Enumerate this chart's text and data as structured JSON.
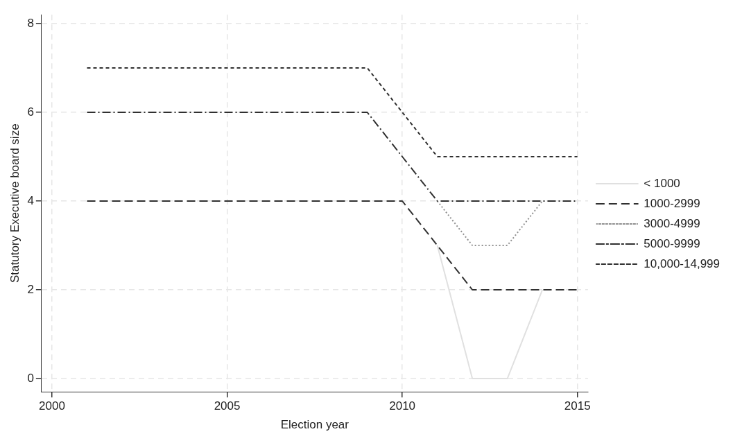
{
  "chart_data": {
    "type": "line",
    "xlabel": "Election year",
    "ylabel": "Statutory Executive board size",
    "x": [
      2001,
      2002,
      2003,
      2004,
      2005,
      2006,
      2007,
      2008,
      2009,
      2010,
      2011,
      2012,
      2013,
      2014,
      2015
    ],
    "series": [
      {
        "name": "< 1000",
        "color": "#e0e0e0",
        "line_style": "solid",
        "values": [
          null,
          null,
          null,
          null,
          null,
          null,
          null,
          null,
          null,
          null,
          3,
          0,
          0,
          2,
          null
        ]
      },
      {
        "name": "1000-2999",
        "color": "#303030",
        "line_style": "dashed",
        "values": [
          4,
          4,
          4,
          4,
          4,
          4,
          4,
          4,
          4,
          4,
          3,
          2,
          2,
          2,
          2
        ]
      },
      {
        "name": "3000-4999",
        "color": "#909090",
        "line_style": "dotted",
        "values": [
          null,
          null,
          null,
          null,
          null,
          null,
          null,
          null,
          null,
          null,
          4,
          3,
          3,
          4,
          null
        ]
      },
      {
        "name": "5000-9999",
        "color": "#303030",
        "line_style": "dashdot",
        "values": [
          6,
          6,
          6,
          6,
          6,
          6,
          6,
          6,
          6,
          5,
          4,
          4,
          4,
          4,
          4
        ]
      },
      {
        "name": "10,000-14,999",
        "color": "#303030",
        "line_style": "shortdash",
        "values": [
          7,
          7,
          7,
          7,
          7,
          7,
          7,
          7,
          7,
          6,
          5,
          5,
          5,
          5,
          5
        ]
      }
    ],
    "xlim": [
      1999.7,
      2015.3
    ],
    "xticks": [
      2000,
      2005,
      2010,
      2015
    ],
    "ylim": [
      -0.3,
      8.2
    ],
    "yticks": [
      0,
      2,
      4,
      6,
      8
    ],
    "grid": true,
    "legend": "right",
    "marker": "none"
  }
}
